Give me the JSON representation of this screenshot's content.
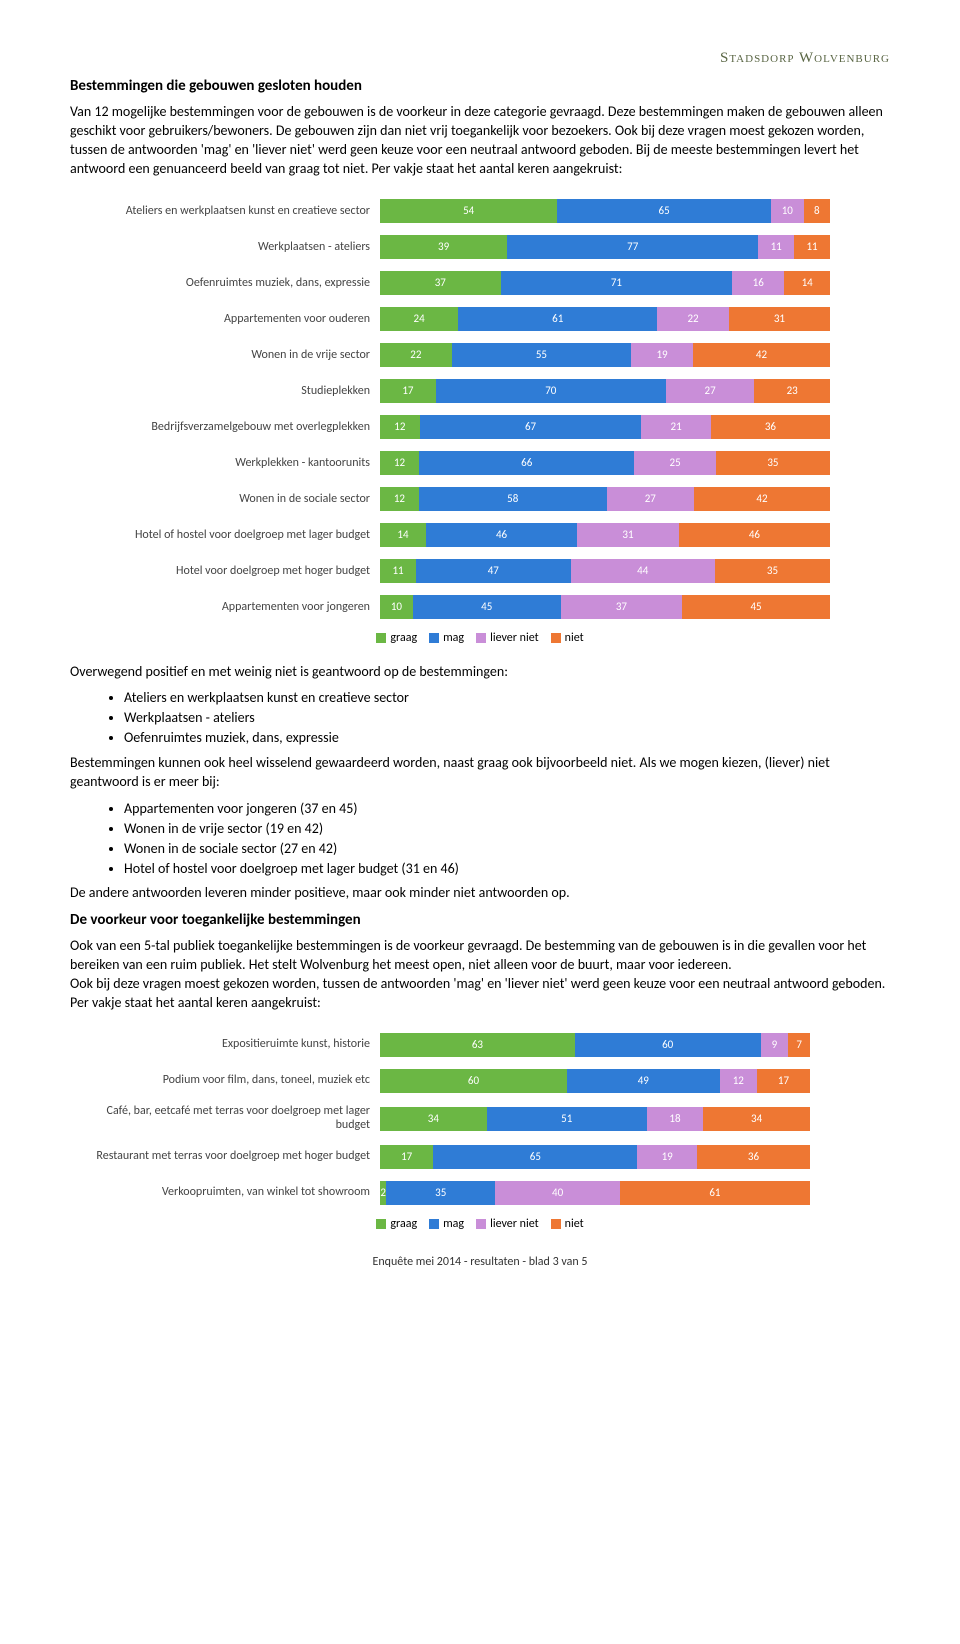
{
  "brand": "Stadsdorp Wolvenburg",
  "section1": {
    "heading": "Bestemmingen die gebouwen gesloten houden",
    "para": "Van 12 mogelijke bestemmingen voor de gebouwen is de voorkeur in deze categorie gevraagd. Deze bestemmingen maken de gebouwen alleen geschikt voor gebruikers/bewoners. De gebouwen zijn dan niet vrij toegankelijk voor bezoekers. Ook bij deze vragen moest gekozen worden, tussen de antwoorden 'mag' en 'liever niet' werd geen keuze voor een neutraal antwoord geboden. Bij de meeste bestemmingen levert het antwoord een genuanceerd beeld van graag tot niet. Per vakje staat het aantal keren aangekruist:"
  },
  "chart1": {
    "type": "stacked-bar",
    "colors": {
      "graag": "#6bb744",
      "mag": "#2f7cd6",
      "liever_niet": "#c98ed8",
      "niet": "#ee7733"
    },
    "legend": [
      "graag",
      "mag",
      "liever niet",
      "niet"
    ],
    "rows": [
      {
        "label": "Ateliers en werkplaatsen kunst en creatieve sector",
        "v": [
          54,
          65,
          10,
          8
        ]
      },
      {
        "label": "Werkplaatsen - ateliers",
        "v": [
          39,
          77,
          11,
          11
        ]
      },
      {
        "label": "Oefenruimtes muziek, dans, expressie",
        "v": [
          37,
          71,
          16,
          14
        ]
      },
      {
        "label": "Appartementen voor ouderen",
        "v": [
          24,
          61,
          22,
          31
        ]
      },
      {
        "label": "Wonen in de vrije sector",
        "v": [
          22,
          55,
          19,
          42
        ]
      },
      {
        "label": "Studieplekken",
        "v": [
          17,
          70,
          27,
          23
        ]
      },
      {
        "label": "Bedrijfsverzamelgebouw met overlegplekken",
        "v": [
          12,
          67,
          21,
          36
        ]
      },
      {
        "label": "Werkplekken - kantoorunits",
        "v": [
          12,
          66,
          25,
          35
        ]
      },
      {
        "label": "Wonen in de sociale sector",
        "v": [
          12,
          58,
          27,
          42
        ]
      },
      {
        "label": "Hotel of hostel voor doelgroep met lager budget",
        "v": [
          14,
          46,
          31,
          46
        ]
      },
      {
        "label": "Hotel voor doelgroep met hoger budget",
        "v": [
          11,
          47,
          44,
          35
        ]
      },
      {
        "label": "Appartementen voor jongeren",
        "v": [
          10,
          45,
          37,
          45
        ]
      }
    ]
  },
  "analysis": {
    "lead": "Overwegend positief en met weinig niet is geantwoord op de bestemmingen:",
    "b1": "Ateliers en werkplaatsen kunst en creatieve sector",
    "b2": "Werkplaatsen - ateliers",
    "b3": "Oefenruimtes muziek, dans, expressie",
    "mid": "Bestemmingen kunnen ook heel wisselend gewaardeerd worden, naast graag ook bijvoorbeeld niet. Als we mogen kiezen, (liever) niet geantwoord is er meer bij:",
    "c1": "Appartementen voor jongeren (37 en 45)",
    "c2": "Wonen in de vrije sector (19 en 42)",
    "c3": "Wonen in de sociale sector (27 en 42)",
    "c4": "Hotel of hostel voor doelgroep met lager budget (31 en 46)",
    "tail": "De andere antwoorden leveren minder positieve, maar ook minder niet antwoorden op."
  },
  "section2": {
    "heading": "De voorkeur voor toegankelijke bestemmingen",
    "para": "Ook van een 5-tal publiek toegankelijke bestemmingen is de voorkeur gevraagd. De bestemming van de gebouwen is in die gevallen voor het bereiken van een ruim publiek. Het stelt Wolvenburg het meest open, niet alleen voor de buurt, maar voor iedereen.\nOok bij deze vragen moest gekozen worden, tussen de antwoorden 'mag' en 'liever niet' werd geen keuze voor een neutraal antwoord geboden. Per vakje staat het aantal keren aangekruist:"
  },
  "chart2": {
    "type": "stacked-bar",
    "colors": {
      "graag": "#6bb744",
      "mag": "#2f7cd6",
      "liever_niet": "#c98ed8",
      "niet": "#ee7733"
    },
    "legend": [
      "graag",
      "mag",
      "liever niet",
      "niet"
    ],
    "rows": [
      {
        "label": "Expositieruimte kunst, historie",
        "v": [
          63,
          60,
          9,
          7
        ]
      },
      {
        "label": "Podium voor film, dans, toneel, muziek etc",
        "v": [
          60,
          49,
          12,
          17
        ]
      },
      {
        "label": "Café, bar, eetcafé met terras voor doelgroep met lager budget",
        "v": [
          34,
          51,
          18,
          34
        ]
      },
      {
        "label": "Restaurant met terras voor doelgroep met hoger budget",
        "v": [
          17,
          65,
          19,
          36
        ]
      },
      {
        "label": "Verkoopruimten, van winkel tot showroom",
        "v": [
          2,
          35,
          40,
          61
        ]
      }
    ]
  },
  "footer": "Enquête mei 2014 - resultaten -  blad 3 van 5"
}
